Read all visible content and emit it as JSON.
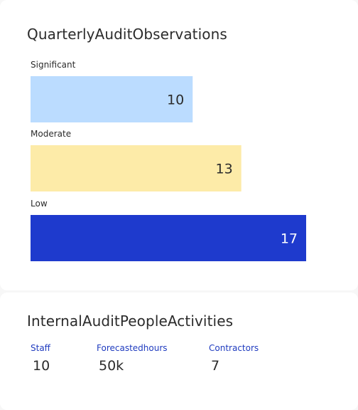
{
  "colors": {
    "significant": "#bbdcff",
    "moderate": "#fdeba8",
    "low": "#1e3acd",
    "stat_label": "#1f3bbf",
    "text": "#2b2b2b"
  },
  "observations": {
    "title": "QuarterlyAuditObservations"
  },
  "chart_data": {
    "type": "bar",
    "orientation": "horizontal",
    "title": "QuarterlyAuditObservations",
    "categories": [
      "Significant",
      "Moderate",
      "Low"
    ],
    "values": [
      10,
      13,
      17
    ],
    "value_labels": [
      "10",
      "13",
      "17"
    ],
    "xlim": [
      0,
      19
    ],
    "grid": false,
    "legend": "none"
  },
  "people": {
    "title": "InternalAuditPeopleActivities",
    "stats": [
      {
        "label": "Staff",
        "value": "10"
      },
      {
        "label": "Forecastedhours",
        "value": "50k"
      },
      {
        "label": "Contractors",
        "value": "7"
      }
    ]
  }
}
